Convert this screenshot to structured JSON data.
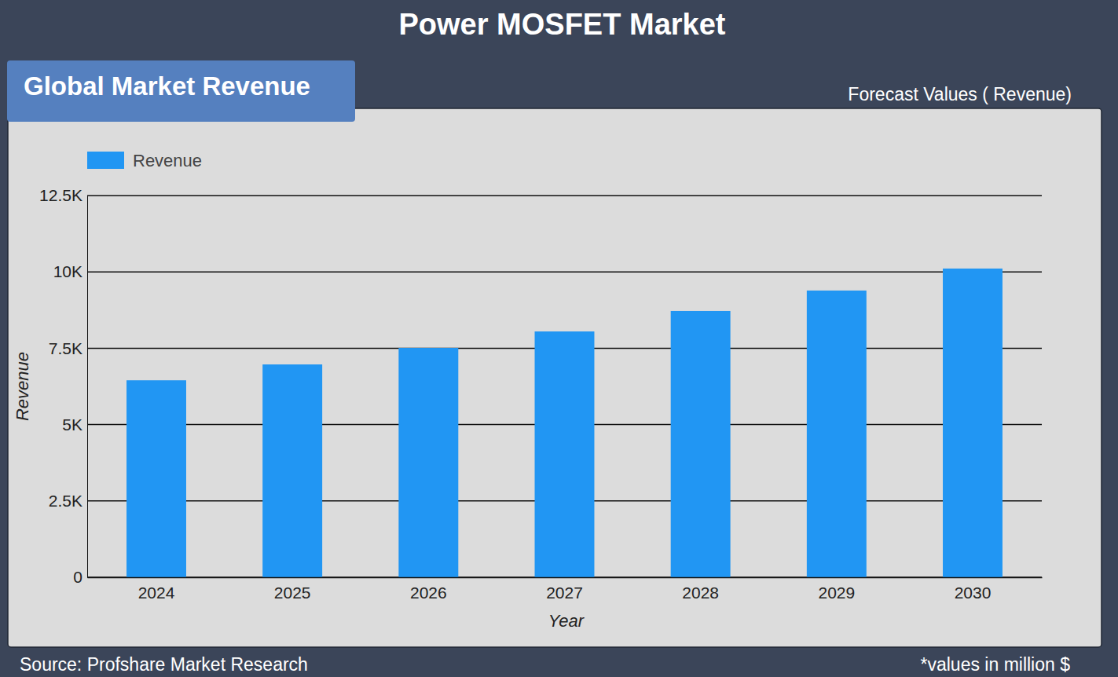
{
  "chart_data": {
    "type": "bar",
    "title": "Power MOSFET Market",
    "subtitle": "Global Market Revenue",
    "annotations": [
      "Forecast Values ( Revenue)",
      "Source: Profshare Market Research",
      "*values in million $"
    ],
    "x_label": "Year",
    "y_label": "Revenue",
    "categories": [
      "2024",
      "2025",
      "2026",
      "2027",
      "2028",
      "2029",
      "2030"
    ],
    "series": [
      {
        "name": "Revenue",
        "color": "#2196f3",
        "values": [
          6450,
          6970,
          7510,
          8050,
          8720,
          9390,
          10110
        ]
      }
    ],
    "ylim": [
      0,
      12500
    ],
    "yticks": [
      0,
      {
        "value": 2500,
        "label": "2.5K"
      },
      {
        "value": 5000,
        "label": "5K"
      },
      {
        "value": 7500,
        "label": "7.5K"
      },
      {
        "value": 10000,
        "label": "10K"
      },
      {
        "value": 12500,
        "label": "12.5K"
      }
    ],
    "grid": true,
    "legend": "top-left"
  }
}
